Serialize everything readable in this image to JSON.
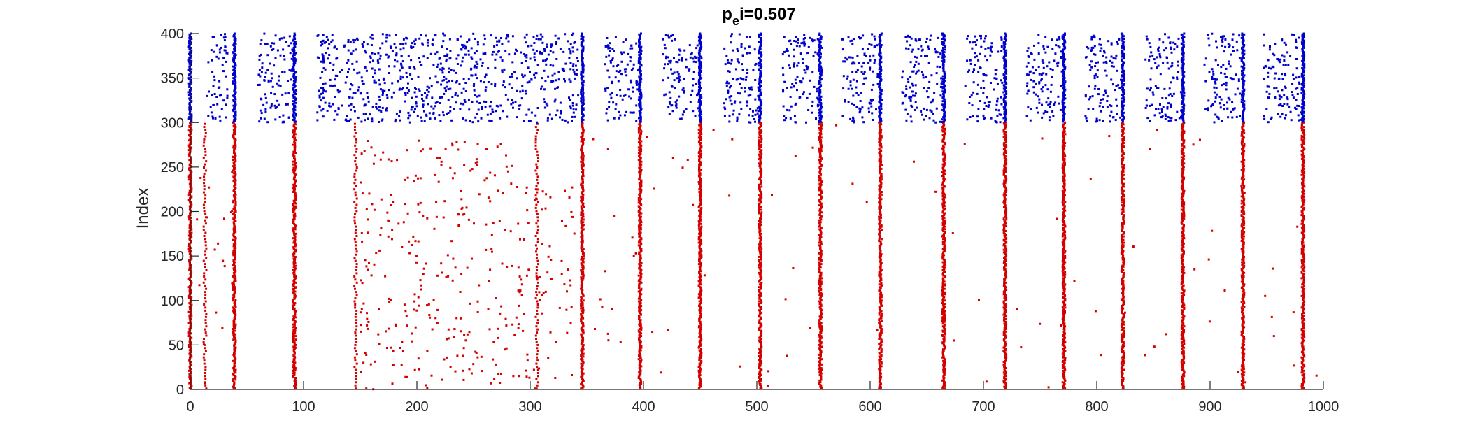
{
  "chart_data": {
    "type": "scatter",
    "title": "p",
    "title_sub": "e",
    "title_rest": "i=0.507",
    "xlabel": "",
    "ylabel": "Index",
    "xlim": [
      0,
      1000
    ],
    "ylim": [
      0,
      400
    ],
    "xticks": [
      0,
      100,
      200,
      300,
      400,
      500,
      600,
      700,
      800,
      900,
      1000
    ],
    "yticks": [
      0,
      50,
      100,
      150,
      200,
      250,
      300,
      350,
      400
    ],
    "grid": false,
    "series": [
      {
        "color": "#d40000",
        "index_range": [
          1,
          300
        ],
        "burst_times": [
          0,
          13,
          39,
          92,
          146,
          306,
          346,
          397,
          450,
          503,
          556,
          609,
          665,
          719,
          771,
          823,
          876,
          929,
          982
        ],
        "bursts": [
          {
            "x": 0,
            "type": "full"
          },
          {
            "x": 13,
            "type": "partial"
          },
          {
            "x": 39,
            "type": "full"
          },
          {
            "x": 92,
            "type": "full"
          },
          {
            "x": 146,
            "type": "partial"
          },
          {
            "x": 306,
            "type": "partial"
          },
          {
            "x": 346,
            "type": "full"
          },
          {
            "x": 397,
            "type": "full"
          },
          {
            "x": 450,
            "type": "full"
          },
          {
            "x": 503,
            "type": "full"
          },
          {
            "x": 556,
            "type": "full"
          },
          {
            "x": 609,
            "type": "full"
          },
          {
            "x": 665,
            "type": "full"
          },
          {
            "x": 719,
            "type": "full"
          },
          {
            "x": 771,
            "type": "full"
          },
          {
            "x": 823,
            "type": "full"
          },
          {
            "x": 876,
            "type": "full"
          },
          {
            "x": 929,
            "type": "full"
          },
          {
            "x": 982,
            "type": "full"
          }
        ],
        "scatter_regions": [
          {
            "x_range": [
              150,
              300
            ],
            "y_range": [
              0,
              280
            ],
            "density": "medium"
          },
          {
            "x_range": [
              300,
              340
            ],
            "y_range": [
              0,
              230
            ],
            "density": "low"
          },
          {
            "x_range": [
              0,
              40
            ],
            "y_range": [
              0,
              300
            ],
            "density": "low"
          },
          {
            "x_range": [
              350,
              1000
            ],
            "y_range": [
              0,
              300
            ],
            "density": "very-low"
          }
        ]
      },
      {
        "color": "#0000cc",
        "index_range": [
          301,
          400
        ],
        "burst_times": [
          0,
          39,
          92,
          346,
          397,
          450,
          503,
          556,
          609,
          665,
          719,
          771,
          823,
          876,
          929,
          982
        ],
        "scatter_regions": [
          {
            "x_range": [
              15,
              33
            ],
            "y_range": [
              300,
              400
            ]
          },
          {
            "x_range": [
              60,
              90
            ],
            "y_range": [
              300,
              400
            ]
          },
          {
            "x_range": [
              112,
              343
            ],
            "y_range": [
              300,
              400
            ]
          },
          {
            "x_range": [
              366,
              396
            ],
            "y_range": [
              300,
              400
            ]
          },
          {
            "x_range": [
              417,
              448
            ],
            "y_range": [
              300,
              400
            ]
          },
          {
            "x_range": [
              470,
              502
            ],
            "y_range": [
              300,
              400
            ]
          },
          {
            "x_range": [
              523,
              555
            ],
            "y_range": [
              300,
              400
            ]
          },
          {
            "x_range": [
              575,
              607
            ],
            "y_range": [
              300,
              400
            ]
          },
          {
            "x_range": [
              628,
              664
            ],
            "y_range": [
              300,
              400
            ]
          },
          {
            "x_range": [
              684,
              717
            ],
            "y_range": [
              300,
              400
            ]
          },
          {
            "x_range": [
              738,
              770
            ],
            "y_range": [
              300,
              400
            ]
          },
          {
            "x_range": [
              790,
              822
            ],
            "y_range": [
              300,
              400
            ]
          },
          {
            "x_range": [
              843,
              875
            ],
            "y_range": [
              300,
              400
            ]
          },
          {
            "x_range": [
              895,
              927
            ],
            "y_range": [
              300,
              400
            ]
          },
          {
            "x_range": [
              947,
              980
            ],
            "y_range": [
              300,
              400
            ]
          }
        ]
      }
    ]
  }
}
